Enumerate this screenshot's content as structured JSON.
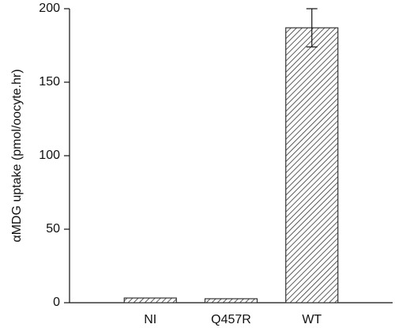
{
  "chart_data": {
    "type": "bar",
    "y_label": "αMDG uptake (pmol/oocyte.hr)",
    "categories": [
      "NI",
      "Q457R",
      "WT"
    ],
    "values": [
      3.2,
      2.7,
      187
    ],
    "errors": [
      null,
      null,
      13
    ],
    "color": "#333333",
    "ylim": [
      0,
      200
    ],
    "yticks": [
      0,
      50,
      100,
      150,
      200
    ],
    "hatch": true
  }
}
